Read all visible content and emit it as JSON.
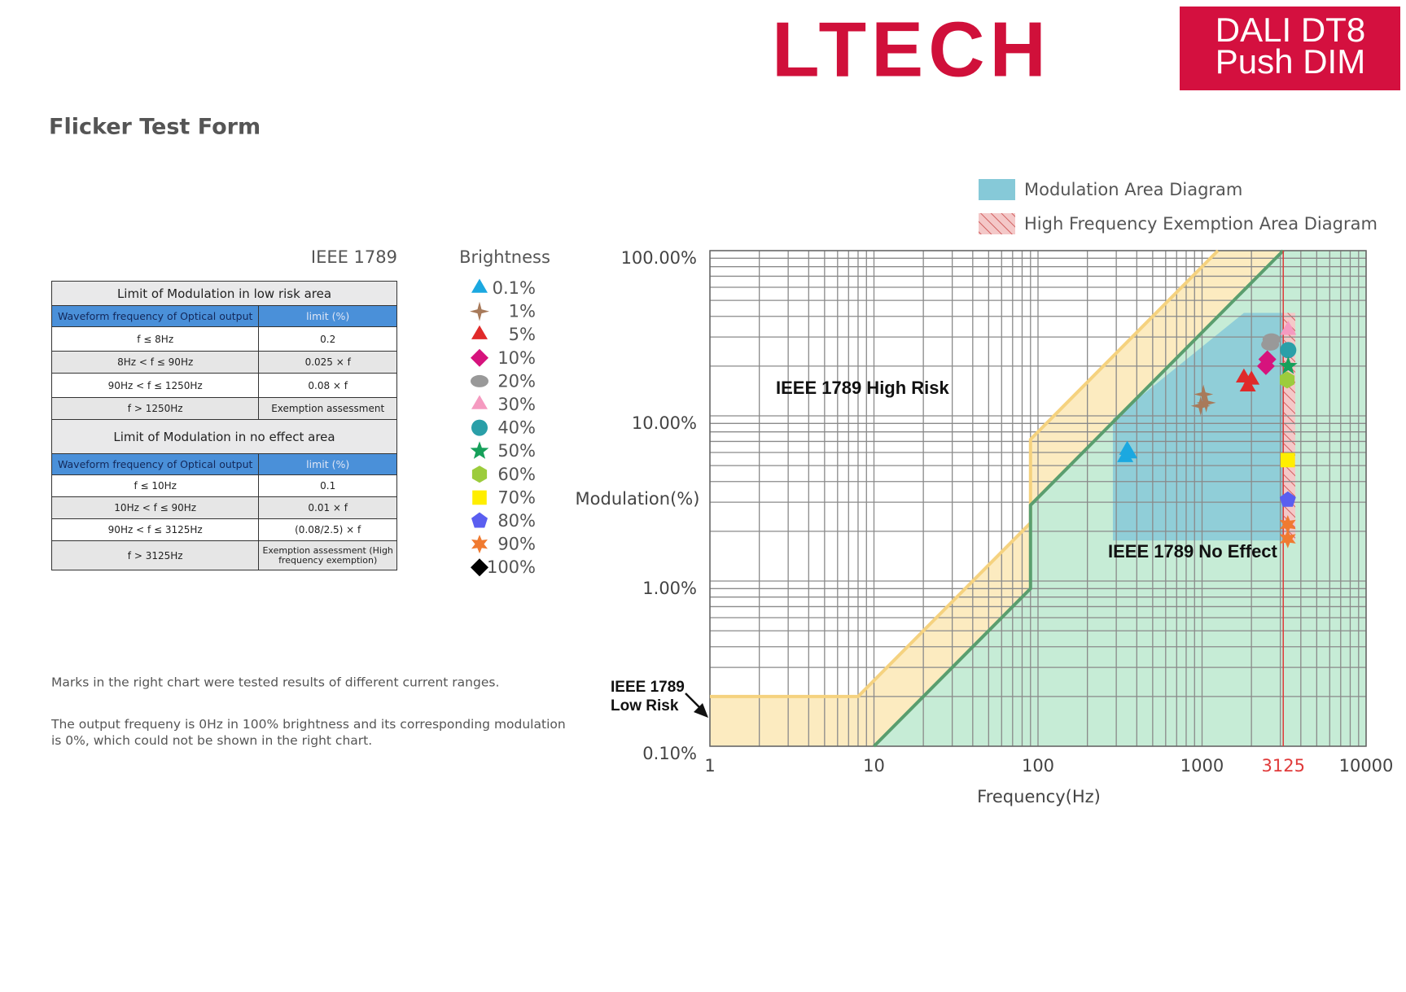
{
  "header": {
    "logo": "LTECH",
    "badge": [
      "DALI DT8",
      "Push DIM"
    ],
    "title": "Flicker Test Form"
  },
  "table": {
    "caption": "IEEE 1789",
    "sections": [
      {
        "title": "Limit of Modulation in low risk area",
        "header": [
          "Waveform frequency of Optical output",
          "limit (%)"
        ],
        "rows": [
          [
            "f ≤ 8Hz",
            "0.2"
          ],
          [
            "8Hz < f ≤ 90Hz",
            "0.025 × f"
          ],
          [
            "90Hz < f ≤ 1250Hz",
            "0.08 × f"
          ],
          [
            "f > 1250Hz",
            "Exemption assessment"
          ]
        ]
      },
      {
        "title": "Limit of Modulation in no effect area",
        "header": [
          "Waveform frequency of Optical output",
          "limit (%)"
        ],
        "rows": [
          [
            "f ≤ 10Hz",
            "0.1"
          ],
          [
            "10Hz < f ≤ 90Hz",
            "0.01 × f"
          ],
          [
            "90Hz < f ≤ 3125Hz",
            "(0.08/2.5) × f"
          ],
          [
            "f > 3125Hz",
            "Exemption assessment (High frequency exemption)"
          ]
        ]
      }
    ]
  },
  "notes": [
    "Marks in the right chart were tested results of different current ranges.",
    "The output frequeny is 0Hz in 100% brightness and its corresponding modulation is 0%, which could not be shown in the right chart."
  ],
  "chart_data": {
    "type": "scatter",
    "legend_title": "Brightness",
    "xlabel": "Frequency(Hz)",
    "ylabel": "Modulation(%)",
    "xlog": true,
    "ylog": true,
    "grid": true,
    "xlim": [
      1,
      10000
    ],
    "xticks": [
      1,
      10,
      100,
      1000,
      3125,
      10000
    ],
    "ylim": [
      0.1,
      100
    ],
    "yticks": [
      {
        "value": 0.1,
        "label": "0.10%"
      },
      {
        "value": 1,
        "label": "1.00%"
      },
      {
        "value": 10,
        "label": "10.00%"
      },
      {
        "value": 100,
        "label": "100.00%"
      }
    ],
    "marker_line": {
      "x": 3125,
      "color": "#e03a3a"
    },
    "annotations": [
      "IEEE 1789 High Risk",
      "IEEE 1789 No Effect",
      "IEEE 1789",
      "Low Risk"
    ],
    "low_risk_limit": {
      "color": "#f5d27f",
      "fill": "#fcebc0",
      "x": [
        1,
        8,
        90,
        90,
        1250
      ],
      "values": [
        0.2,
        0.2,
        2.25,
        7.2,
        100
      ]
    },
    "no_effect_limit": {
      "color": "#5a9e6e",
      "fill": "#c6ecd6",
      "x": [
        10,
        90,
        90,
        3125
      ],
      "values": [
        0.1,
        0.9,
        2.88,
        100
      ]
    },
    "areas": [
      {
        "name": "Modulation Area Diagram",
        "color": "#86c9d8",
        "hatch": false,
        "x": [
          286,
          286,
          1800,
          3125,
          3125
        ],
        "values": [
          1.76,
          9.6,
          42,
          42,
          1.76
        ]
      },
      {
        "name": "High Frequency Exemption Area Diagram",
        "color": "#e8a0a0",
        "hatch": true,
        "x": [
          3125,
          3125,
          3700,
          3700
        ],
        "values": [
          1.76,
          42,
          42,
          1.76
        ]
      }
    ],
    "series": [
      {
        "name": "0.1%",
        "color": "#1ba8e0",
        "marker": "triangle",
        "x": [
          340,
          350,
          360
        ],
        "values": [
          5.6,
          6.2,
          5.9
        ]
      },
      {
        "name": "1%",
        "color": "#a87a5a",
        "marker": "star4",
        "x": [
          980,
          1020,
          1060
        ],
        "values": [
          11.5,
          13.5,
          12
        ]
      },
      {
        "name": "5%",
        "color": "#e02a2a",
        "marker": "triangle",
        "x": [
          1800,
          1900,
          2000
        ],
        "values": [
          17,
          15,
          16.5
        ]
      },
      {
        "name": "10%",
        "color": "#d6137d",
        "marker": "diamond",
        "x": [
          2450,
          2500
        ],
        "values": [
          20,
          22
        ]
      },
      {
        "name": "20%",
        "color": "#999999",
        "marker": "ellipse",
        "x": [
          2600,
          2650
        ],
        "values": [
          27,
          29
        ]
      },
      {
        "name": "30%",
        "color": "#f59ac0",
        "marker": "triangle",
        "x": [
          3350
        ],
        "values": [
          33
        ]
      },
      {
        "name": "40%",
        "color": "#2a9fa8",
        "marker": "circle",
        "x": [
          3350
        ],
        "values": [
          25
        ]
      },
      {
        "name": "50%",
        "color": "#16a05a",
        "marker": "star5",
        "x": [
          3350
        ],
        "values": [
          20
        ]
      },
      {
        "name": "60%",
        "color": "#9ccc3c",
        "marker": "hexagon",
        "x": [
          3300
        ],
        "values": [
          16.5
        ]
      },
      {
        "name": "70%",
        "color": "#ffee00",
        "marker": "square",
        "x": [
          3330
        ],
        "values": [
          5.4
        ]
      },
      {
        "name": "80%",
        "color": "#5a5ef0",
        "marker": "pentagon",
        "x": [
          3330
        ],
        "values": [
          3.1
        ]
      },
      {
        "name": "90%",
        "color": "#f07a30",
        "marker": "star6",
        "x": [
          3330,
          3330
        ],
        "values": [
          2.2,
          1.8
        ]
      },
      {
        "name": "100%",
        "color": "#000000",
        "marker": "diamond",
        "x": [],
        "values": []
      }
    ]
  }
}
